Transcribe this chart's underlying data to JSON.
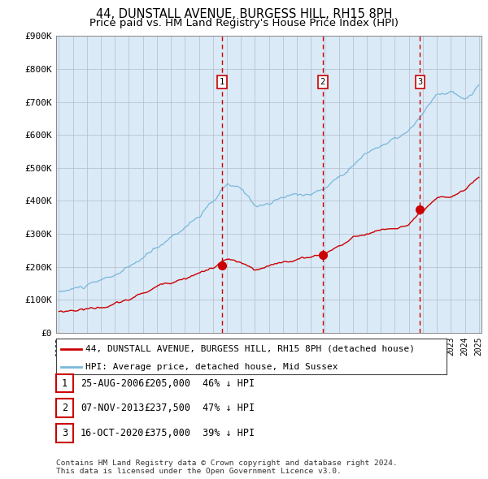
{
  "title": "44, DUNSTALL AVENUE, BURGESS HILL, RH15 8PH",
  "subtitle": "Price paid vs. HM Land Registry's House Price Index (HPI)",
  "ylim": [
    0,
    900000
  ],
  "yticks": [
    0,
    100000,
    200000,
    300000,
    400000,
    500000,
    600000,
    700000,
    800000,
    900000
  ],
  "ytick_labels": [
    "£0",
    "£100K",
    "£200K",
    "£300K",
    "£400K",
    "£500K",
    "£600K",
    "£700K",
    "£800K",
    "£900K"
  ],
  "x_start_year": 1995,
  "x_end_year": 2025,
  "hpi_color": "#7ab8d9",
  "price_color": "#cc0000",
  "vline_color": "#cc0000",
  "bg_fill_color": "#daeaf7",
  "grid_color": "#b0b8c8",
  "sale_dates": [
    2006.646,
    2013.846,
    2020.792
  ],
  "sale_prices": [
    205000,
    237500,
    375000
  ],
  "sale_labels": [
    "1",
    "2",
    "3"
  ],
  "legend_label_price": "44, DUNSTALL AVENUE, BURGESS HILL, RH15 8PH (detached house)",
  "legend_label_hpi": "HPI: Average price, detached house, Mid Sussex",
  "table_entries": [
    {
      "num": "1",
      "date": "25-AUG-2006",
      "price": "£205,000",
      "pct": "46% ↓ HPI"
    },
    {
      "num": "2",
      "date": "07-NOV-2013",
      "price": "£237,500",
      "pct": "47% ↓ HPI"
    },
    {
      "num": "3",
      "date": "16-OCT-2020",
      "price": "£375,000",
      "pct": "39% ↓ HPI"
    }
  ],
  "footnote": "Contains HM Land Registry data © Crown copyright and database right 2024.\nThis data is licensed under the Open Government Licence v3.0.",
  "title_fontsize": 10.5,
  "subtitle_fontsize": 9.5,
  "tick_fontsize": 8,
  "legend_fontsize": 8,
  "table_fontsize": 8.5
}
